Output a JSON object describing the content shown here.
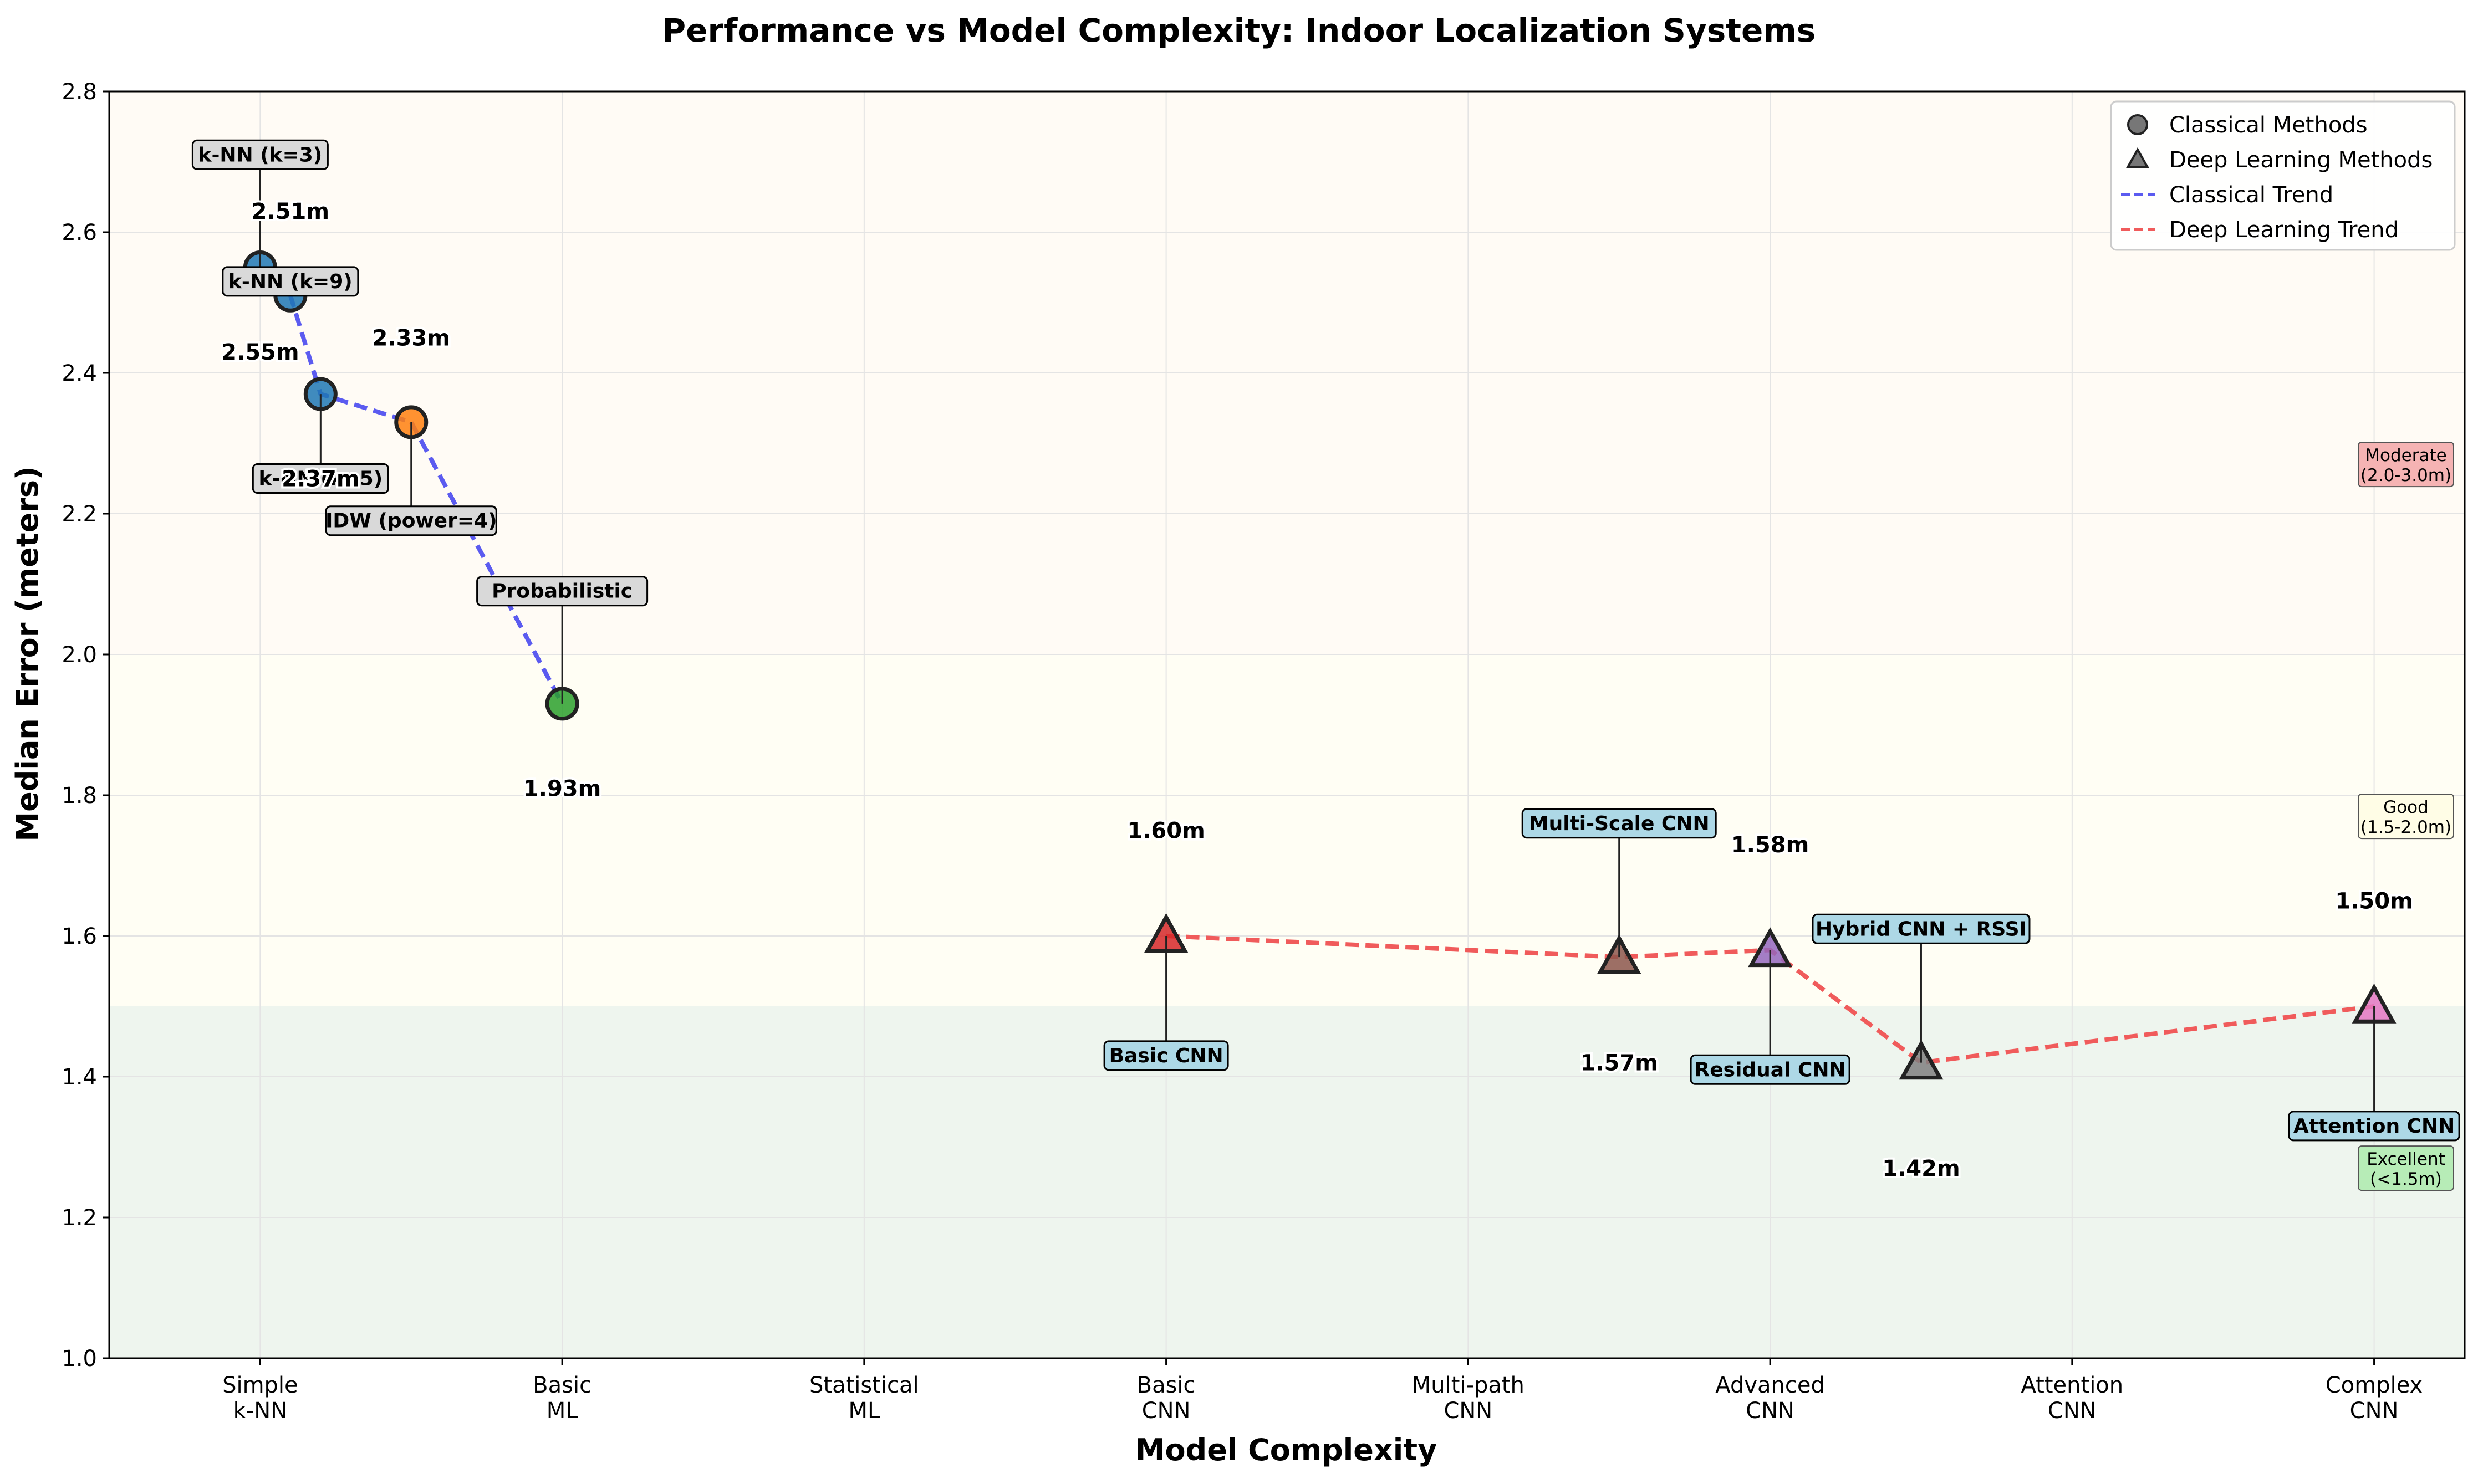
{
  "chart_data": {
    "type": "scatter",
    "title": "Performance vs Model Complexity: Indoor Localization Systems",
    "xlabel": "Model Complexity",
    "ylabel": "Median Error (meters)",
    "ylim": [
      1.0,
      2.8
    ],
    "yticks": [
      "1.0",
      "1.2",
      "1.4",
      "1.6",
      "1.8",
      "2.0",
      "2.2",
      "2.4",
      "2.6",
      "2.8"
    ],
    "xlim": [
      -0.5,
      7.3
    ],
    "xticks": [
      {
        "x": 0,
        "label": [
          "Simple",
          "k-NN"
        ]
      },
      {
        "x": 1,
        "label": [
          "Basic",
          "ML"
        ]
      },
      {
        "x": 2,
        "label": [
          "Statistical",
          "ML"
        ]
      },
      {
        "x": 3,
        "label": [
          "Basic",
          "CNN"
        ]
      },
      {
        "x": 4,
        "label": [
          "Multi-path",
          "CNN"
        ]
      },
      {
        "x": 5,
        "label": [
          "Advanced",
          "CNN"
        ]
      },
      {
        "x": 6,
        "label": [
          "Attention",
          "CNN"
        ]
      },
      {
        "x": 7,
        "label": [
          "Complex",
          "CNN"
        ]
      }
    ],
    "grid": true,
    "legend_position": "top-right",
    "legend": [
      "Classical Methods",
      "Deep Learning Methods",
      "Classical Trend",
      "Deep Learning Trend"
    ],
    "bands": [
      {
        "from": 1.0,
        "to": 1.5,
        "color": "#eef5ee",
        "label": [
          "Excellent",
          "(<1.5m)"
        ],
        "label_y": 1.27,
        "box": "#b7ecb7"
      },
      {
        "from": 1.5,
        "to": 2.0,
        "color": "#fffef4",
        "label": [
          "Good",
          "(1.5-2.0m)"
        ],
        "label_y": 1.77,
        "box": "#fffde6"
      },
      {
        "from": 2.0,
        "to": 2.8,
        "color": "#fffbf5",
        "label": [
          "Moderate",
          "(2.0-3.0m)"
        ],
        "label_y": 2.27,
        "box": "#f5b3b3"
      }
    ],
    "classical": [
      {
        "name": "k-NN (k=3)",
        "x": 0.0,
        "y": 2.55,
        "color": "#1f77b4",
        "value_label": "2.55m",
        "label_dy": 0.16,
        "value_dy": -0.12,
        "value_dx": 0
      },
      {
        "name": "k-NN (k=5)",
        "x": 0.2,
        "y": 2.37,
        "color": "#1f77b4",
        "value_label": "2.37m",
        "label_dy": -0.12,
        "value_dy": -0.12,
        "value_dx": 0
      },
      {
        "name": "k-NN (k=9)",
        "x": 0.1,
        "y": 2.51,
        "color": "#1f77b4",
        "value_label": "2.51m",
        "label_dy": 0.02,
        "value_dy": 0.12,
        "value_dx": 0
      },
      {
        "name": "IDW (power=4)",
        "x": 0.5,
        "y": 2.33,
        "color": "#ff7f0e",
        "value_label": "2.33m",
        "label_dy": -0.14,
        "value_dy": 0.12,
        "value_dx": 0
      },
      {
        "name": "Probabilistic",
        "x": 1.0,
        "y": 1.93,
        "color": "#2ca02c",
        "value_label": "1.93m",
        "label_dy": 0.16,
        "value_dy": -0.12,
        "value_dx": 0
      }
    ],
    "deep": [
      {
        "name": "Basic CNN",
        "x": 3.0,
        "y": 1.6,
        "color": "#d62728",
        "value_label": "1.60m",
        "label_dy": -0.17,
        "value_dy": 0.15,
        "value_dx": 0
      },
      {
        "name": "Multi-Scale CNN",
        "x": 4.5,
        "y": 1.57,
        "color": "#8c564b",
        "value_label": "1.57m",
        "label_dy": 0.19,
        "value_dy": -0.15,
        "value_dx": 0
      },
      {
        "name": "Residual CNN",
        "x": 5.0,
        "y": 1.58,
        "color": "#9467bd",
        "value_label": "1.58m",
        "label_dy": -0.17,
        "value_dy": 0.15,
        "value_dx": 0
      },
      {
        "name": "Hybrid CNN + RSSI",
        "x": 5.5,
        "y": 1.42,
        "color": "#7f7f7f",
        "value_label": "1.42m",
        "label_dy": 0.19,
        "value_dy": -0.15,
        "value_dx": 0
      },
      {
        "name": "Attention CNN",
        "x": 7.0,
        "y": 1.5,
        "color": "#e377c2",
        "value_label": "1.50m",
        "label_dy": -0.17,
        "value_dy": 0.15,
        "value_dx": 0
      }
    ],
    "classical_trend": [
      [
        0.0,
        2.55
      ],
      [
        0.1,
        2.51
      ],
      [
        0.2,
        2.37
      ],
      [
        0.5,
        2.33
      ],
      [
        1.0,
        1.93
      ]
    ],
    "deep_trend": [
      [
        3.0,
        1.6
      ],
      [
        4.5,
        1.57
      ],
      [
        5.0,
        1.58
      ],
      [
        5.5,
        1.42
      ],
      [
        7.0,
        1.5
      ]
    ],
    "classical_trend_color": "#5b5bf0",
    "deep_trend_color": "#f05b5b",
    "classical_label_box": "#d9d9d9",
    "deep_label_box": "#add8e6"
  }
}
